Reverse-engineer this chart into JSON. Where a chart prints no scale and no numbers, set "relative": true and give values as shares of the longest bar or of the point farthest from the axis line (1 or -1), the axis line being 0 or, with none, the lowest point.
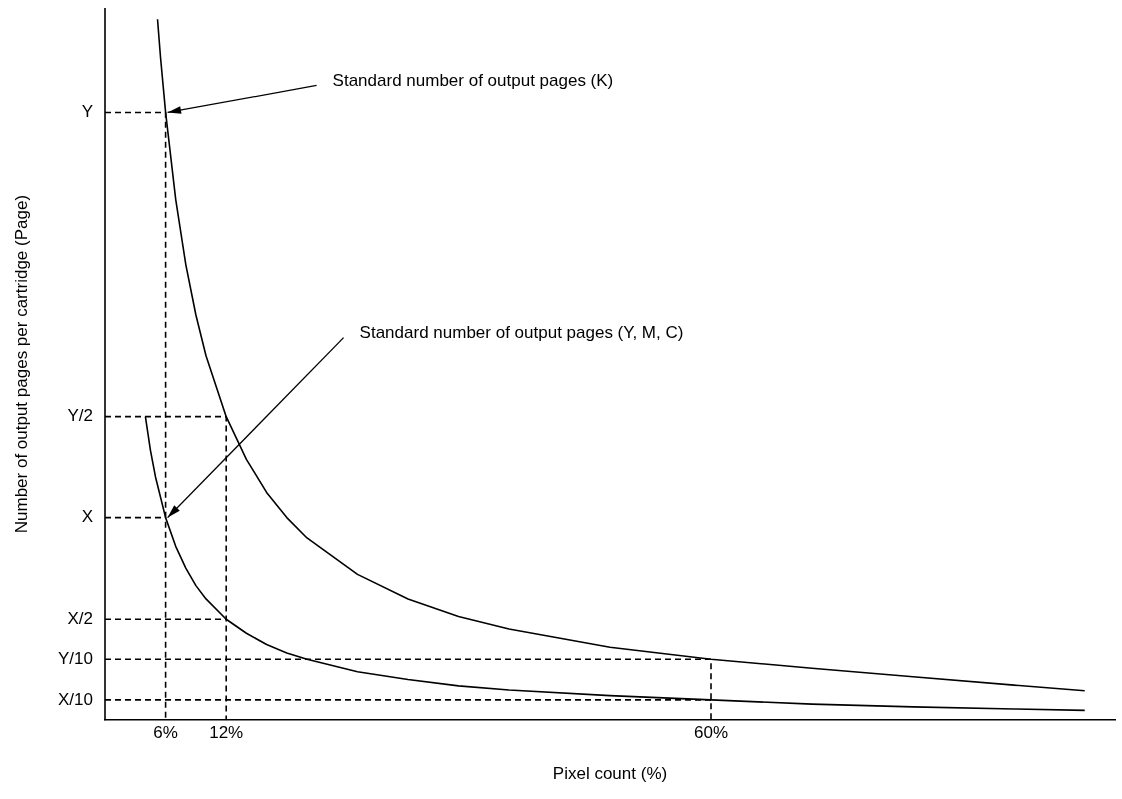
{
  "chart_data": {
    "type": "line",
    "relative": true,
    "xlabel": "Pixel count (%)",
    "ylabel": "Number of output pages per cartridge (Page)",
    "xlim": [
      0,
      100
    ],
    "xticks": [
      {
        "value": 6,
        "label": "6%"
      },
      {
        "value": 12,
        "label": "12%"
      },
      {
        "value": 60,
        "label": "60%"
      }
    ],
    "grid": false,
    "legend": false,
    "marker": "none",
    "line_style": "solid",
    "series": [
      {
        "color": "#000000",
        "x": [
          5.2,
          5.5,
          6,
          7,
          8,
          9,
          10,
          12,
          14,
          16,
          18,
          20,
          25,
          30,
          35,
          40,
          50,
          60,
          70,
          80,
          90,
          97
        ],
        "values": [
          1,
          0.945,
          0.867,
          0.743,
          0.65,
          0.578,
          0.52,
          0.433,
          0.372,
          0.325,
          0.289,
          0.26,
          0.208,
          0.173,
          0.148,
          0.13,
          0.104,
          0.087,
          0.074,
          0.062,
          0.05,
          0.042
        ]
      },
      {
        "color": "#000000",
        "x": [
          4,
          4.5,
          5,
          6,
          7,
          8,
          9,
          10,
          12,
          14,
          16,
          18,
          20,
          25,
          30,
          35,
          40,
          50,
          60,
          70,
          80,
          90,
          97
        ],
        "values": [
          0.433,
          0.385,
          0.347,
          0.289,
          0.248,
          0.217,
          0.192,
          0.173,
          0.144,
          0.124,
          0.108,
          0.096,
          0.087,
          0.069,
          0.058,
          0.049,
          0.043,
          0.035,
          0.029,
          0.023,
          0.019,
          0.016,
          0.014
        ]
      },
      {
        "name": "Y",
        "color": "#000000",
        "line_style": "dashed",
        "x": [
          0,
          6,
          6
        ],
        "values": [
          0.867,
          0.867,
          0
        ]
      },
      {
        "name": "Y/2",
        "color": "#000000",
        "line_style": "dashed",
        "x": [
          0,
          12,
          12
        ],
        "values": [
          0.433,
          0.433,
          0
        ]
      },
      {
        "name": "X",
        "color": "#000000",
        "line_style": "dashed",
        "x": [
          0,
          6
        ],
        "values": [
          0.289,
          0.289
        ]
      },
      {
        "name": "X/2",
        "color": "#000000",
        "line_style": "dashed",
        "x": [
          0,
          12
        ],
        "values": [
          0.144,
          0.144
        ]
      },
      {
        "name": "Y/10",
        "color": "#000000",
        "line_style": "dashed",
        "x": [
          0,
          60,
          60
        ],
        "values": [
          0.087,
          0.087,
          0
        ]
      },
      {
        "name": "X/10",
        "color": "#000000",
        "line_style": "dashed",
        "x": [
          0,
          60
        ],
        "values": [
          0.029,
          0.029
        ]
      }
    ],
    "annotations": [
      {
        "text": "Standard number of output pages (K)",
        "x": 6,
        "y": 0.867
      },
      {
        "text": "Standard number of output pages (Y, M, C)",
        "x": 6,
        "y": 0.289
      }
    ]
  }
}
